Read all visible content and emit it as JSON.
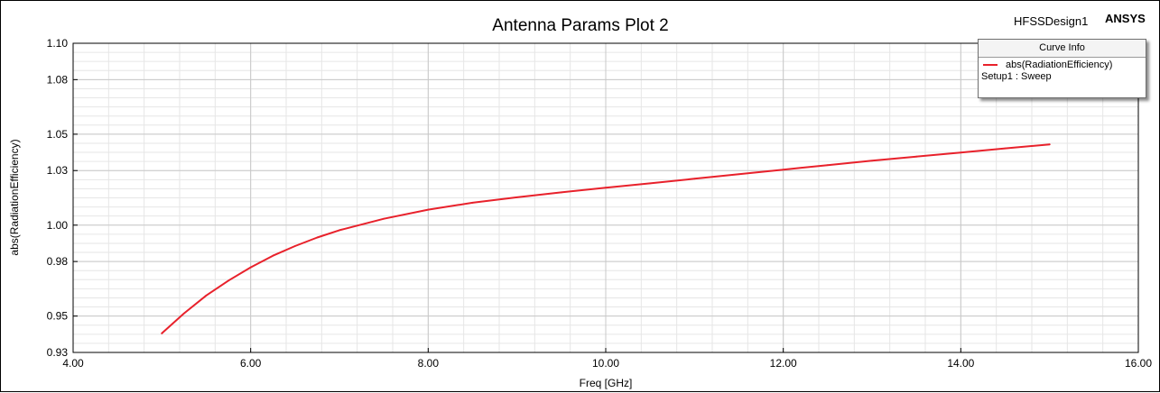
{
  "header": {
    "design_name": "HFSSDesign1",
    "brand": "ANSYS"
  },
  "legend": {
    "title": "Curve Info",
    "entries": [
      {
        "label": "abs(RadiationEfficiency)",
        "sublabel": "Setup1 : Sweep"
      }
    ]
  },
  "colors": {
    "series": "#e8212b",
    "grid_major": "#c8c8c8",
    "grid_minor": "#e6e6e6"
  },
  "chart_data": {
    "type": "line",
    "title": "Antenna Params Plot 2",
    "xlabel": "Freq [GHz]",
    "ylabel": "abs(RadiationEfficiency)",
    "xlim": [
      4.0,
      16.0
    ],
    "ylim": [
      0.93,
      1.1
    ],
    "xticks": [
      4.0,
      6.0,
      8.0,
      10.0,
      12.0,
      14.0,
      16.0
    ],
    "xtick_labels": [
      "4.00",
      "6.00",
      "8.00",
      "10.00",
      "12.00",
      "14.00",
      "16.00"
    ],
    "yticks": [
      0.93,
      0.95,
      0.98,
      1.0,
      1.03,
      1.05,
      1.08,
      1.1
    ],
    "ytick_labels": [
      "0.93",
      "0.95",
      "0.98",
      "1.00",
      "1.03",
      "1.05",
      "1.08",
      "1.10"
    ],
    "grid": true,
    "legend_position": "top-right",
    "series": [
      {
        "name": "abs(RadiationEfficiency)",
        "x": [
          5.0,
          5.25,
          5.5,
          5.75,
          6.0,
          6.25,
          6.5,
          6.75,
          7.0,
          7.5,
          8.0,
          8.5,
          9.0,
          9.5,
          10.0,
          10.5,
          11.0,
          11.5,
          12.0,
          12.5,
          13.0,
          13.5,
          14.0,
          14.5,
          15.0
        ],
        "y": [
          0.9405,
          0.9515,
          0.9613,
          0.9695,
          0.9768,
          0.9832,
          0.9885,
          0.9932,
          0.9972,
          1.0035,
          1.0085,
          1.0123,
          1.0153,
          1.018,
          1.0206,
          1.023,
          1.0255,
          1.028,
          1.0305,
          1.033,
          1.0354,
          1.0377,
          1.0399,
          1.0422,
          1.0444
        ]
      }
    ]
  }
}
